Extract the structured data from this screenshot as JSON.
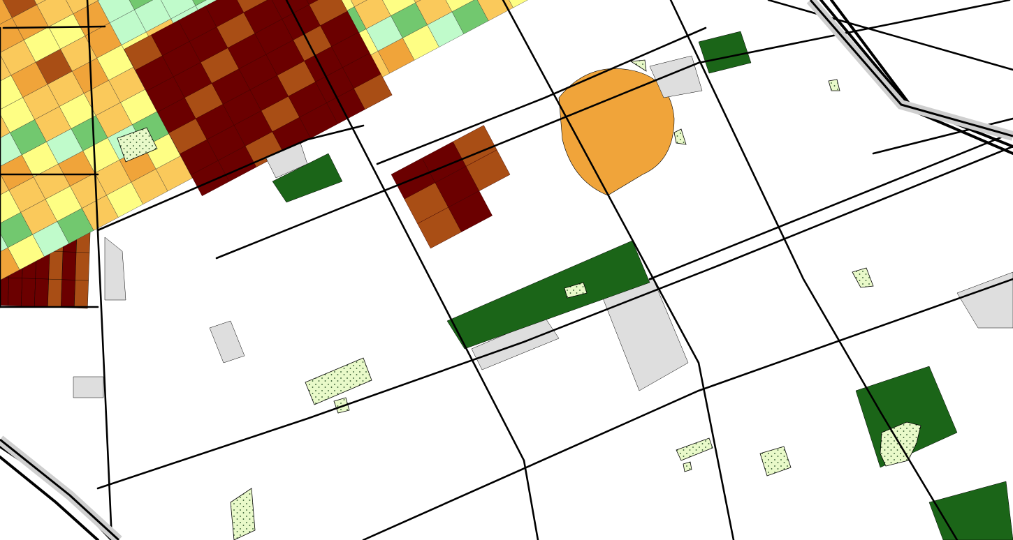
{
  "map": {
    "type": "parcel choropleth",
    "labels_visible": false,
    "legend_visible": false,
    "classes": [
      {
        "key": "c1",
        "color": "#6B0000"
      },
      {
        "key": "c2",
        "color": "#A94E15"
      },
      {
        "key": "c3",
        "color": "#F0A43A"
      },
      {
        "key": "c4",
        "color": "#FAC95B"
      },
      {
        "key": "c5",
        "color": "#FEFE84"
      },
      {
        "key": "c6",
        "color": "#C0FBCB"
      },
      {
        "key": "c7",
        "color": "#72C86F"
      },
      {
        "key": "c8",
        "color": "#3E9A40"
      },
      {
        "key": "c9",
        "color": "#1B6518"
      },
      {
        "key": "unclassified",
        "color": "#DEDEDE"
      },
      {
        "key": "park",
        "color": "#E9F9C9"
      }
    ],
    "street_color": "#000000",
    "background_color": "#FFFFFF"
  }
}
